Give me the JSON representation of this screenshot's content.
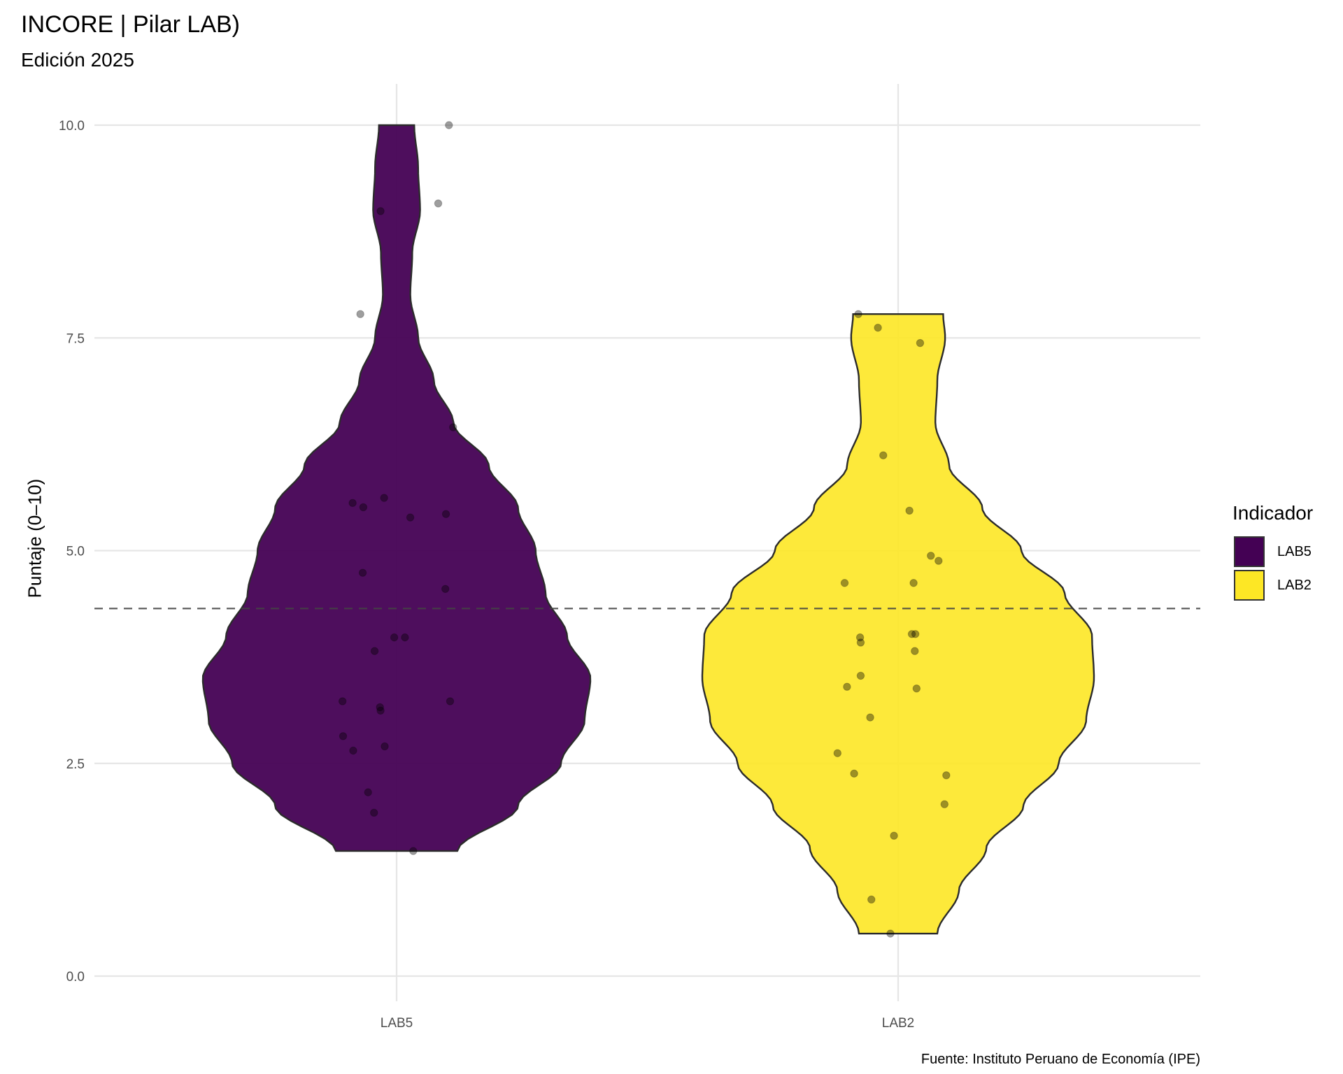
{
  "chart_data": {
    "type": "violin",
    "title": "INCORE | Pilar LAB)",
    "subtitle": "Edición 2025",
    "caption": "Fuente: Instituto Peruano de Economía (IPE)",
    "xlabel": "",
    "ylabel": "Puntaje (0–10)",
    "ylim": [
      -0.25,
      10.5
    ],
    "yticks": [
      0,
      2.5,
      5,
      7.5,
      10
    ],
    "ytick_labels": [
      "0.0",
      "2.5",
      "5.0",
      "7.5",
      "10.0"
    ],
    "categories": [
      "LAB5",
      "LAB2"
    ],
    "reference_line": {
      "value": 4.32,
      "style": "dashed"
    },
    "grid": true,
    "legend": {
      "title": "Indicador",
      "position": "right",
      "items": [
        {
          "label": "LAB5",
          "color": "#440154"
        },
        {
          "label": "LAB2",
          "color": "#FDE725"
        }
      ]
    },
    "series": [
      {
        "name": "LAB5",
        "color": "#440154",
        "range": [
          1.47,
          10.0
        ],
        "density_profile": [
          [
            1.47,
            0.31
          ],
          [
            2.0,
            0.62
          ],
          [
            2.5,
            0.84
          ],
          [
            3.0,
            0.96
          ],
          [
            3.5,
            0.99
          ],
          [
            4.0,
            0.87
          ],
          [
            4.5,
            0.76
          ],
          [
            5.0,
            0.71
          ],
          [
            5.5,
            0.62
          ],
          [
            6.0,
            0.47
          ],
          [
            6.5,
            0.29
          ],
          [
            7.0,
            0.19
          ],
          [
            7.5,
            0.11
          ],
          [
            8.0,
            0.07
          ],
          [
            8.5,
            0.08
          ],
          [
            9.0,
            0.12
          ],
          [
            9.5,
            0.11
          ],
          [
            10.0,
            0.09
          ]
        ],
        "points": [
          [
            0.88,
            10.0
          ],
          [
            -0.27,
            8.99
          ],
          [
            0.7,
            9.08
          ],
          [
            -0.61,
            7.78
          ],
          [
            0.95,
            6.45
          ],
          [
            -0.74,
            5.56
          ],
          [
            -0.56,
            5.51
          ],
          [
            -0.21,
            5.62
          ],
          [
            0.23,
            5.39
          ],
          [
            0.83,
            5.43
          ],
          [
            -0.57,
            4.74
          ],
          [
            0.82,
            4.55
          ],
          [
            -0.04,
            3.98
          ],
          [
            0.14,
            3.98
          ],
          [
            -0.37,
            3.82
          ],
          [
            -0.91,
            3.23
          ],
          [
            0.9,
            3.23
          ],
          [
            -0.28,
            3.16
          ],
          [
            -0.27,
            3.12
          ],
          [
            -0.9,
            2.82
          ],
          [
            -0.73,
            2.65
          ],
          [
            -0.2,
            2.7
          ],
          [
            -0.48,
            2.16
          ],
          [
            -0.38,
            1.92
          ],
          [
            0.28,
            1.47
          ]
        ]
      },
      {
        "name": "LAB2",
        "color": "#FDE725",
        "range": [
          0.5,
          7.78
        ],
        "density_profile": [
          [
            0.5,
            0.2
          ],
          [
            1.0,
            0.31
          ],
          [
            1.5,
            0.45
          ],
          [
            2.0,
            0.64
          ],
          [
            2.5,
            0.82
          ],
          [
            3.0,
            0.96
          ],
          [
            3.5,
            1.0
          ],
          [
            4.0,
            0.99
          ],
          [
            4.5,
            0.85
          ],
          [
            5.0,
            0.63
          ],
          [
            5.5,
            0.43
          ],
          [
            6.0,
            0.26
          ],
          [
            6.5,
            0.19
          ],
          [
            7.0,
            0.2
          ],
          [
            7.5,
            0.24
          ],
          [
            7.78,
            0.23
          ]
        ],
        "points": [
          [
            -0.67,
            7.78
          ],
          [
            -0.34,
            7.62
          ],
          [
            0.37,
            7.44
          ],
          [
            -0.25,
            6.12
          ],
          [
            0.19,
            5.47
          ],
          [
            0.55,
            4.94
          ],
          [
            0.68,
            4.88
          ],
          [
            -0.9,
            4.62
          ],
          [
            0.26,
            4.62
          ],
          [
            -0.64,
            3.98
          ],
          [
            0.23,
            4.02
          ],
          [
            0.29,
            4.02
          ],
          [
            -0.63,
            3.92
          ],
          [
            0.28,
            3.82
          ],
          [
            -0.63,
            3.53
          ],
          [
            -0.86,
            3.4
          ],
          [
            0.31,
            3.38
          ],
          [
            -0.47,
            3.04
          ],
          [
            -1.02,
            2.62
          ],
          [
            -0.74,
            2.38
          ],
          [
            0.81,
            2.36
          ],
          [
            0.78,
            2.02
          ],
          [
            -0.07,
            1.65
          ],
          [
            -0.45,
            0.9
          ],
          [
            -0.13,
            0.5
          ]
        ]
      }
    ]
  }
}
